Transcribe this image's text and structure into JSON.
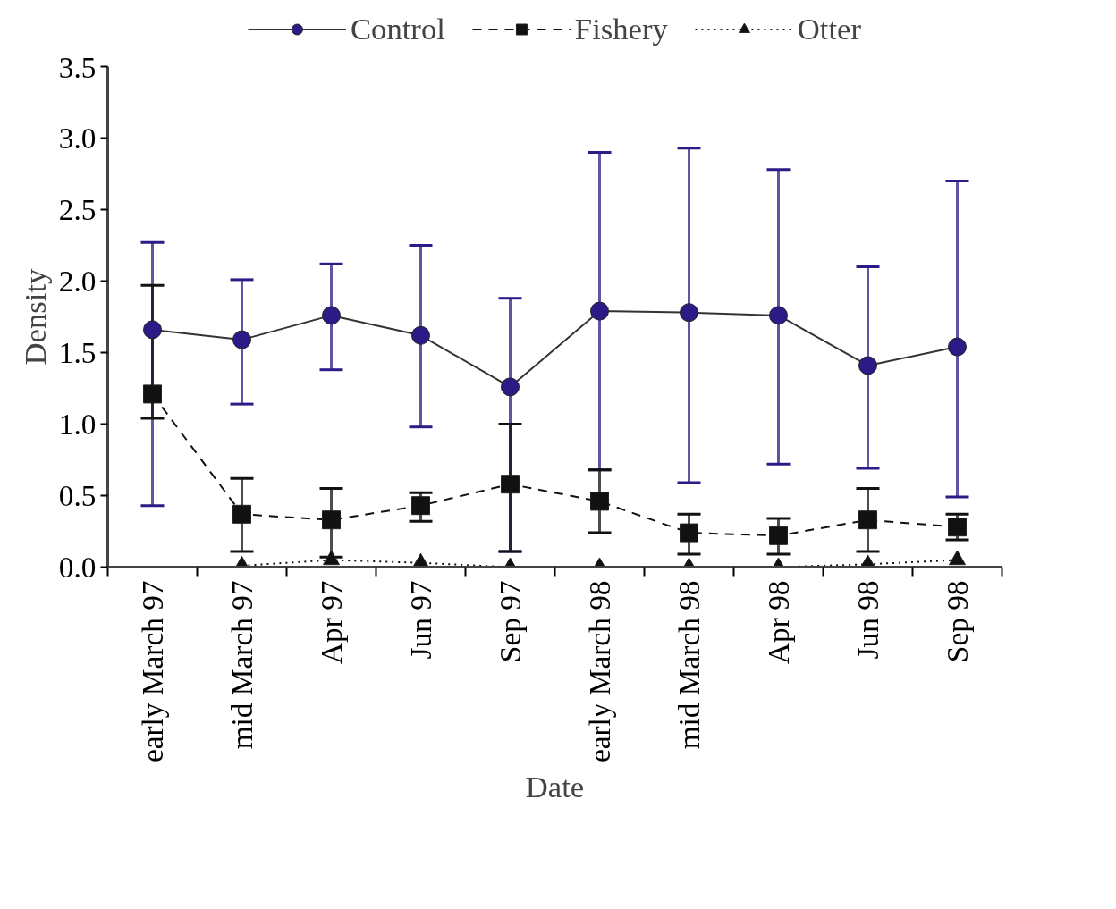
{
  "chart_data": {
    "type": "line",
    "xlabel": "Date",
    "ylabel": "Density",
    "categories": [
      "early March 97",
      "mid March 97",
      "Apr 97",
      "Jun 97",
      "Sep 97",
      "early March 98",
      "mid March 98",
      "Apr 98",
      "Jun 98",
      "Sep 98"
    ],
    "ylim": [
      0,
      3.5
    ],
    "yticks": [
      {
        "value": 0,
        "label": "0.0"
      },
      {
        "value": 0.5,
        "label": "0.5"
      },
      {
        "value": 1,
        "label": "1.0"
      },
      {
        "value": 1.5,
        "label": "1.5"
      },
      {
        "value": 2,
        "label": "2.0"
      },
      {
        "value": 2.5,
        "label": "2.5"
      },
      {
        "value": 3,
        "label": "3.0"
      },
      {
        "value": 3.5,
        "label": "3.5"
      }
    ],
    "grid": false,
    "legend": "top",
    "series": [
      {
        "name": "Control",
        "color": "#2e1a87",
        "marker": "circle",
        "line_style": "solid",
        "values": [
          1.66,
          1.59,
          1.76,
          1.62,
          1.26,
          1.79,
          1.78,
          1.76,
          1.41,
          1.54
        ],
        "errors": [
          [
            0.43,
            2.27
          ],
          [
            1.14,
            2.01
          ],
          [
            1.38,
            2.12
          ],
          [
            0.98,
            2.25
          ],
          [
            0.11,
            1.88
          ],
          [
            0.68,
            2.9
          ],
          [
            0.59,
            2.93
          ],
          [
            0.72,
            2.78
          ],
          [
            0.69,
            2.1
          ],
          [
            0.49,
            2.7
          ]
        ]
      },
      {
        "name": "Fishery",
        "color": "#111111",
        "marker": "square",
        "line_style": "dashed",
        "values": [
          1.21,
          0.37,
          0.33,
          0.43,
          0.58,
          0.46,
          0.24,
          0.22,
          0.33,
          0.28
        ],
        "errors": [
          [
            1.04,
            1.97
          ],
          [
            0.11,
            0.62
          ],
          [
            0.07,
            0.55
          ],
          [
            0.32,
            0.52
          ],
          [
            0.11,
            1.0
          ],
          [
            0.24,
            0.68
          ],
          [
            0.09,
            0.37
          ],
          [
            0.09,
            0.34
          ],
          [
            0.11,
            0.55
          ],
          0.09
        ]
      },
      {
        "name": "Otter",
        "color": "#111111",
        "marker": "triangle",
        "line_style": "dotted",
        "values": [
          null,
          0.01,
          0.05,
          0.03,
          0.0,
          0.0,
          0.0,
          0.0,
          0.02,
          0.05
        ]
      }
    ]
  }
}
